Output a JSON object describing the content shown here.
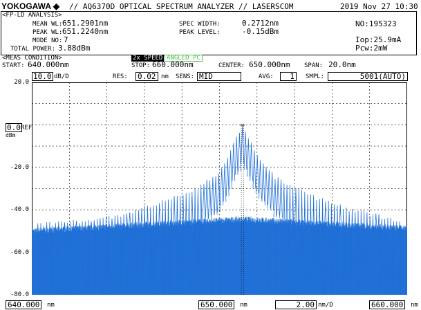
{
  "header": {
    "brand": "YOKOGAWA",
    "brand_mark": "◆",
    "title": "// AQ6370D OPTICAL SPECTRUM ANALYZER // LASERSCOM",
    "datetime": "2019 Nov 27 10:30"
  },
  "analysis": {
    "section_label": "<FP-LD ANALYSIS>",
    "mean_wl_label": "MEAN WL:",
    "mean_wl_value": "651.2901nm",
    "peak_wl_label": "PEAK WL:",
    "peak_wl_value": "651.2240nm",
    "mode_no_label": "MODE NO:",
    "mode_no_value": "7",
    "total_power_label": "TOTAL POWER:",
    "total_power_value": "3.88dBm",
    "spec_width_label": "SPEC WIDTH:",
    "spec_width_value": "0.2712nm",
    "peak_level_label": "PEAK LEVEL:",
    "peak_level_value": "-0.15dBm",
    "no_label": "NO:195323",
    "iop_label": "Iop:25.9mA",
    "pcw_label": "Pcw:2mW"
  },
  "meas": {
    "section_label": "<MEAS CONDITION>",
    "speed_label": "2x SPEED",
    "angled_label": "ANGLED PC",
    "start_label": "START:",
    "start_value": "640.000nm",
    "stop_label": "STOP:",
    "stop_value": "660.000nm",
    "center_label": "CENTER:",
    "center_value": "650.000nm",
    "span_label": "SPAN:",
    "span_value": "20.0nm"
  },
  "settings": {
    "scale_value": "10.0",
    "scale_unit": "dB/D",
    "res_label": "RES:",
    "res_value": "0.02",
    "res_unit": "nm",
    "sens_label": "SENS:",
    "sens_value": "MID",
    "avg_label": "AVG:",
    "avg_value": "1",
    "smpl_label": "SMPL:",
    "smpl_value": "5001(AUTO)"
  },
  "ref": {
    "value": "0.0",
    "label": "REF",
    "unit": "dBm"
  },
  "bottom": {
    "start_value": "640.000",
    "start_unit": "nm",
    "center_value": "650.000",
    "center_unit": "nm",
    "per_div_value": "2.00",
    "per_div_unit": "nm/D",
    "stop_value": "660.000",
    "stop_unit": "nm"
  },
  "colors": {
    "trace": "#1f6fd6",
    "speed_box": "#000000",
    "angled_text": "#55bb55"
  },
  "chart_data": {
    "type": "line",
    "title": "",
    "xlabel": "",
    "ylabel": "",
    "xlim": [
      640,
      660
    ],
    "ylim": [
      -80,
      20
    ],
    "y_ticks": [
      "20.0",
      "",
      "-20.0",
      "-40.0",
      "-60.0",
      "-80.0"
    ],
    "y_tick_values": [
      20,
      0,
      -20,
      -40,
      -60,
      -80
    ],
    "grid": true,
    "series": [
      {
        "type": "fp-ld-spectrum",
        "mode_spacing_nm": 0.158,
        "center_nm": 651.224,
        "peak_dbm": -0.15,
        "mode_peaks_envelope": [
          {
            "x": 640.5,
            "y": -47
          },
          {
            "x": 643.0,
            "y": -45
          },
          {
            "x": 645.0,
            "y": -42
          },
          {
            "x": 647.0,
            "y": -36
          },
          {
            "x": 649.0,
            "y": -29
          },
          {
            "x": 650.0,
            "y": -22
          },
          {
            "x": 650.6,
            "y": -12
          },
          {
            "x": 651.0,
            "y": -4
          },
          {
            "x": 651.224,
            "y": -0.15
          },
          {
            "x": 651.5,
            "y": -5
          },
          {
            "x": 652.0,
            "y": -14
          },
          {
            "x": 653.0,
            "y": -25
          },
          {
            "x": 655.0,
            "y": -34
          },
          {
            "x": 657.0,
            "y": -40
          },
          {
            "x": 659.5,
            "y": -45
          }
        ],
        "noise_floor_dbm": -50,
        "valley_depth_dbm": -80
      }
    ]
  }
}
